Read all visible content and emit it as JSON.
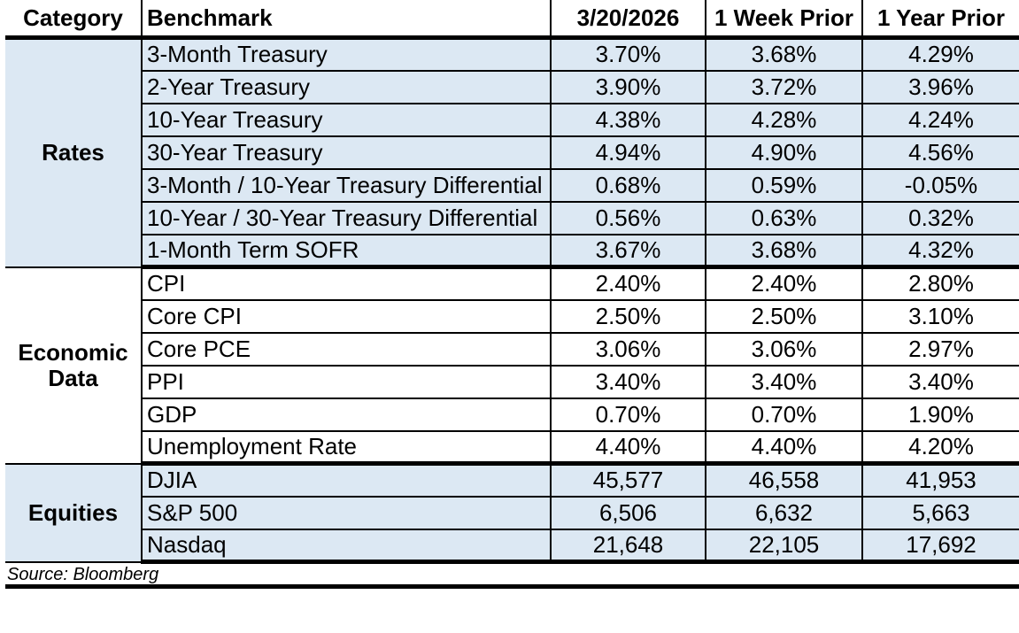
{
  "colors": {
    "section_highlight": "#dce8f3",
    "border": "#000000",
    "text": "#000000"
  },
  "table": {
    "headers": [
      "Category",
      "Benchmark",
      "3/20/2026",
      "1 Week Prior",
      "1 Year Prior"
    ],
    "sections": [
      {
        "category": "Rates",
        "highlighted": true,
        "rows": [
          {
            "benchmark": "3-Month Treasury",
            "values": [
              "3.70%",
              "3.68%",
              "4.29%"
            ]
          },
          {
            "benchmark": "2-Year Treasury",
            "values": [
              "3.90%",
              "3.72%",
              "3.96%"
            ]
          },
          {
            "benchmark": "10-Year Treasury",
            "values": [
              "4.38%",
              "4.28%",
              "4.24%"
            ]
          },
          {
            "benchmark": "30-Year Treasury",
            "values": [
              "4.94%",
              "4.90%",
              "4.56%"
            ]
          },
          {
            "benchmark": "3-Month / 10-Year Treasury Differential",
            "values": [
              "0.68%",
              "0.59%",
              "-0.05%"
            ]
          },
          {
            "benchmark": "10-Year / 30-Year Treasury Differential",
            "values": [
              "0.56%",
              "0.63%",
              "0.32%"
            ]
          },
          {
            "benchmark": "1-Month Term SOFR",
            "values": [
              "3.67%",
              "3.68%",
              "4.32%"
            ]
          }
        ]
      },
      {
        "category": "Economic Data",
        "highlighted": false,
        "rows": [
          {
            "benchmark": "CPI",
            "values": [
              "2.40%",
              "2.40%",
              "2.80%"
            ]
          },
          {
            "benchmark": "Core CPI",
            "values": [
              "2.50%",
              "2.50%",
              "3.10%"
            ]
          },
          {
            "benchmark": "Core PCE",
            "values": [
              "3.06%",
              "3.06%",
              "2.97%"
            ]
          },
          {
            "benchmark": "PPI",
            "values": [
              "3.40%",
              "3.40%",
              "3.40%"
            ]
          },
          {
            "benchmark": "GDP",
            "values": [
              "0.70%",
              "0.70%",
              "1.90%"
            ]
          },
          {
            "benchmark": "Unemployment Rate",
            "values": [
              "4.40%",
              "4.40%",
              "4.20%"
            ]
          }
        ]
      },
      {
        "category": "Equities",
        "highlighted": true,
        "rows": [
          {
            "benchmark": "DJIA",
            "values": [
              "45,577",
              "46,558",
              "41,953"
            ]
          },
          {
            "benchmark": "S&P 500",
            "values": [
              "6,506",
              "6,632",
              "5,663"
            ]
          },
          {
            "benchmark": "Nasdaq",
            "values": [
              "21,648",
              "22,105",
              "17,692"
            ]
          }
        ]
      }
    ],
    "source": "Source: Bloomberg"
  }
}
